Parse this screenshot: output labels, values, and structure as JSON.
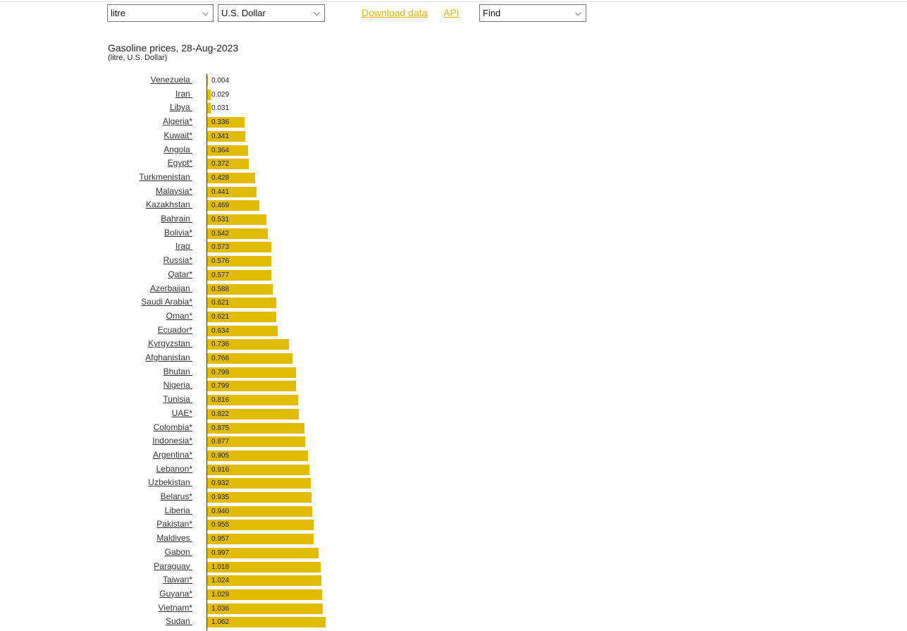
{
  "controls": {
    "unit_select": "litre",
    "currency_select": "U.S. Dollar",
    "download_link": "Download data",
    "api_link": "API",
    "find_select": "Find"
  },
  "colors": {
    "bar": "#e2bc00",
    "link": "#e2b80b"
  },
  "chart_data": {
    "type": "bar",
    "orientation": "horizontal",
    "title": "Gasoline prices, 28-Aug-2023",
    "subtitle": "(litre, U.S. Dollar)",
    "categories": [
      "Venezuela",
      "Iran",
      "Libya",
      "Algeria*",
      "Kuwait*",
      "Angola",
      "Egypt*",
      "Turkmenistan",
      "Malaysia*",
      "Kazakhstan",
      "Bahrain",
      "Bolivia*",
      "Iraq",
      "Russia*",
      "Qatar*",
      "Azerbaijan",
      "Saudi Arabia*",
      "Oman*",
      "Ecuador*",
      "Kyrgyzstan",
      "Afghanistan",
      "Bhutan",
      "Nigeria",
      "Tunisia",
      "UAE*",
      "Colombia*",
      "Indonesia*",
      "Argentina*",
      "Lebanon*",
      "Uzbekistan",
      "Belarus*",
      "Liberia",
      "Pakistan*",
      "Maldives",
      "Gabon",
      "Paraguay",
      "Taiwan*",
      "Guyana*",
      "Vietnam*",
      "Sudan"
    ],
    "values": [
      0.004,
      0.029,
      0.031,
      0.336,
      0.341,
      0.364,
      0.372,
      0.428,
      0.441,
      0.469,
      0.531,
      0.542,
      0.573,
      0.576,
      0.577,
      0.588,
      0.621,
      0.621,
      0.634,
      0.736,
      0.766,
      0.799,
      0.799,
      0.816,
      0.822,
      0.875,
      0.877,
      0.905,
      0.916,
      0.932,
      0.935,
      0.94,
      0.955,
      0.957,
      0.997,
      1.018,
      1.024,
      1.029,
      1.036,
      1.062
    ],
    "labels": [
      "0.004",
      "0.029",
      "0.031",
      "0.336",
      "0.341",
      "0.364",
      "0.372",
      "0.428",
      "0.441",
      "0.469",
      "0.531",
      "0.542",
      "0.573",
      "0.576",
      "0.577",
      "0.588",
      "0.621",
      "0.621",
      "0.634",
      "0.736",
      "0.766",
      "0.799",
      "0.799",
      "0.816",
      "0.822",
      "0.875",
      "0.877",
      "0.905",
      "0.916",
      "0.932",
      "0.935",
      "0.940",
      "0.955",
      "0.957",
      "0.997",
      "1.018",
      "1.024",
      "1.029",
      "1.036",
      "1.062"
    ]
  }
}
